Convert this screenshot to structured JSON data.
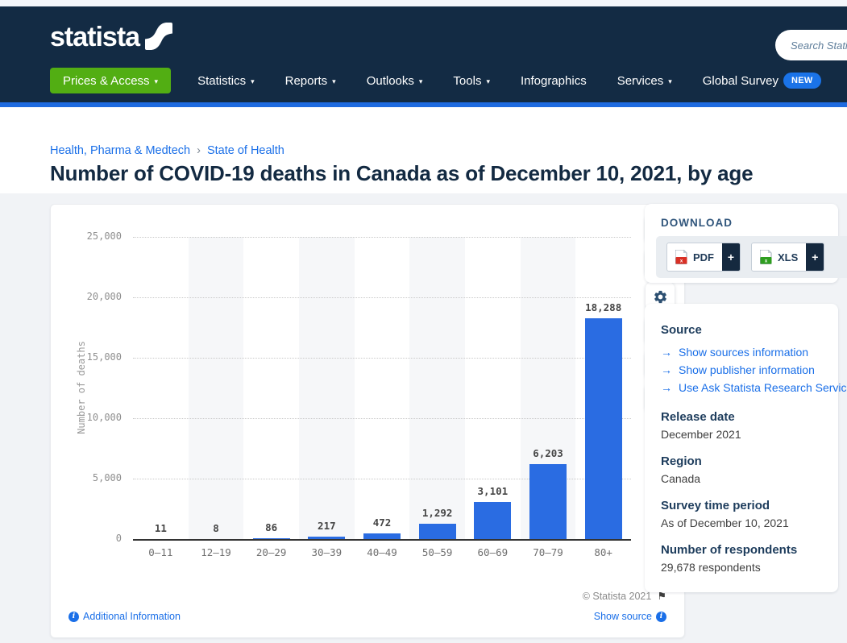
{
  "header": {
    "logo_text": "statista",
    "search_placeholder": "Search Statistics...",
    "nav": [
      {
        "label": "Prices & Access",
        "caret": true,
        "highlight": true
      },
      {
        "label": "Statistics",
        "caret": true
      },
      {
        "label": "Reports",
        "caret": true
      },
      {
        "label": "Outlooks",
        "caret": true
      },
      {
        "label": "Tools",
        "caret": true
      },
      {
        "label": "Infographics",
        "caret": false
      },
      {
        "label": "Services",
        "caret": true
      },
      {
        "label": "Global Survey",
        "caret": false,
        "badge": "NEW"
      }
    ]
  },
  "breadcrumb": {
    "items": [
      "Health, Pharma & Medtech",
      "State of Health"
    ],
    "separator": "›"
  },
  "page_title": "Number of COVID-19 deaths in Canada as of December 10, 2021, by age",
  "chart_data": {
    "type": "bar",
    "title": "Number of COVID-19 deaths in Canada as of December 10, 2021, by age",
    "categories": [
      "0–11",
      "12–19",
      "20–29",
      "30–39",
      "40–49",
      "50–59",
      "60–69",
      "70–79",
      "80+"
    ],
    "values": [
      11,
      8,
      86,
      217,
      472,
      1292,
      3101,
      6203,
      18288
    ],
    "value_labels": [
      "11",
      "8",
      "86",
      "217",
      "472",
      "1,292",
      "3,101",
      "6,203",
      "18,288"
    ],
    "xlabel": "",
    "ylabel": "Number of deaths",
    "ylim": [
      0,
      25000
    ],
    "ytick_interval": 5000,
    "ytick_labels": [
      "25,000",
      "20,000",
      "15,000",
      "10,000",
      "5,000",
      "0"
    ],
    "grid": "horizontal-dotted",
    "legend": "none",
    "bar_color": "#2a6ce2",
    "alternating_band_color": "#f6f7f9"
  },
  "chart_card": {
    "copyright": "© Statista 2021",
    "additional_info_label": "Additional Information",
    "show_source_label": "Show source",
    "toolbar_icons": [
      "star",
      "bell",
      "gear",
      "share",
      "quote",
      "print"
    ]
  },
  "sidebar": {
    "download": {
      "title": "DOWNLOAD",
      "buttons": [
        {
          "label": "PDF",
          "plus": "+",
          "icon": "pdf-file",
          "icon_color": "#d93025"
        },
        {
          "label": "XLS",
          "plus": "+",
          "icon": "xls-file",
          "icon_color": "#2e9e1f"
        }
      ]
    },
    "source": {
      "title": "Source",
      "links": [
        "Show sources information",
        "Show publisher information",
        "Use Ask Statista Research Service"
      ],
      "fields": [
        {
          "label": "Release date",
          "value": "December 2021"
        },
        {
          "label": "Region",
          "value": "Canada"
        },
        {
          "label": "Survey time period",
          "value": "As of December 10, 2021"
        },
        {
          "label": "Number of respondents",
          "value": "29,678 respondents"
        }
      ]
    }
  },
  "colors": {
    "navbar": "#132b44",
    "navbar_border": "#1f6be0",
    "prices_button": "#52ae13",
    "new_badge": "#1a73e8",
    "link_blue": "#1a6fe8",
    "bar_blue": "#2a6ce2",
    "title_navy": "#132a42",
    "content_bg": "#f1f3f6"
  }
}
